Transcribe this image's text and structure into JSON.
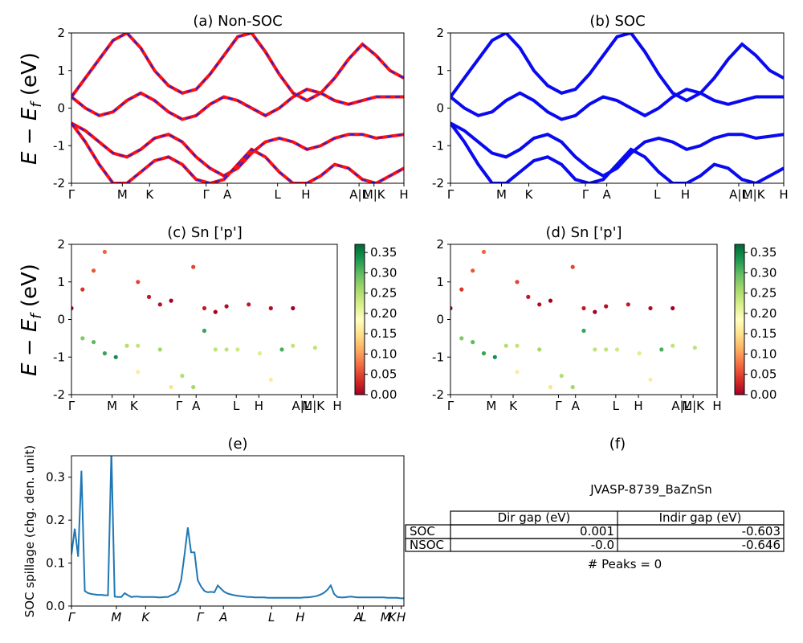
{
  "panels": {
    "a": {
      "title": "(a) Non-SOC"
    },
    "b": {
      "title": "(b) SOC"
    },
    "c": {
      "title": "(c)  Sn ['p']"
    },
    "d": {
      "title": "(d) Sn ['p']"
    },
    "e": {
      "title": "(e)"
    },
    "f": {
      "title": "(f)"
    }
  },
  "band_ylabel": "E − E_f (eV)",
  "kpath_labels": [
    "Γ",
    "M",
    "K",
    "Γ",
    "A",
    "L",
    "H",
    "A",
    "|",
    "L",
    "M",
    "|",
    "K",
    "H"
  ],
  "colorbar_ticks": [
    "0.00",
    "0.05",
    "0.10",
    "0.15",
    "0.20",
    "0.25",
    "0.30",
    "0.35"
  ],
  "colors": {
    "nonsoc_band": "#ff1010",
    "nonsoc_dash": "#2222dd",
    "soc_band": "#0a0af0",
    "spillage_line": "#1f77b4"
  },
  "colormap": "RdYlGn",
  "info": {
    "material": "JVASP-8739_BaZnSn",
    "table": {
      "headers": [
        "",
        "Dir gap (eV)",
        "Indir gap (eV)"
      ],
      "rows": [
        {
          "label": "SOC",
          "dir": "0.001",
          "indir": "-0.603"
        },
        {
          "label": "NSOC",
          "dir": "-0.0",
          "indir": "-0.646"
        }
      ]
    },
    "peaks": "# Peaks = 0"
  },
  "chart_data": [
    {
      "type": "line",
      "title": "(a) Non-SOC",
      "ylabel": "E − E_f (eV)",
      "ylim": [
        -2,
        2
      ],
      "yticks": [
        -2,
        -1,
        0,
        1,
        2
      ],
      "xticks": [
        "Γ",
        "M",
        "K",
        "Γ",
        "A",
        "L",
        "H",
        "A|L",
        "M|K",
        "H"
      ],
      "series": [
        {
          "x": [
            0,
            0.05,
            0.1,
            0.15,
            0.2,
            0.25,
            0.3,
            0.35,
            0.4,
            0.45,
            0.5,
            0.55,
            0.6,
            0.65,
            0.7,
            0.75,
            0.8,
            0.85,
            0.9,
            0.95,
            1.0,
            1.05,
            1.1,
            1.15,
            1.2
          ],
          "y": [
            0.3,
            0.8,
            1.3,
            1.8,
            2.0,
            1.6,
            1.0,
            0.6,
            0.4,
            0.5,
            0.9,
            1.4,
            1.9,
            2.0,
            1.5,
            0.9,
            0.4,
            0.2,
            0.4,
            0.8,
            1.3,
            1.7,
            1.4,
            1.0,
            0.8
          ]
        },
        {
          "x": [
            0,
            0.05,
            0.1,
            0.15,
            0.2,
            0.25,
            0.3,
            0.35,
            0.4,
            0.45,
            0.5,
            0.55,
            0.6,
            0.65,
            0.7,
            0.75,
            0.8,
            0.85,
            0.9,
            0.95,
            1.0,
            1.05,
            1.1,
            1.15,
            1.2
          ],
          "y": [
            0.3,
            0.0,
            -0.2,
            -0.1,
            0.2,
            0.4,
            0.2,
            -0.1,
            -0.3,
            -0.2,
            0.1,
            0.3,
            0.2,
            0.0,
            -0.2,
            0.0,
            0.3,
            0.5,
            0.4,
            0.2,
            0.1,
            0.2,
            0.3,
            0.3,
            0.3
          ]
        },
        {
          "x": [
            0,
            0.05,
            0.1,
            0.15,
            0.2,
            0.25,
            0.3,
            0.35,
            0.4,
            0.45,
            0.5,
            0.55,
            0.6,
            0.65,
            0.7,
            0.75,
            0.8,
            0.85,
            0.9,
            0.95,
            1.0,
            1.05,
            1.1,
            1.15,
            1.2
          ],
          "y": [
            -0.4,
            -0.6,
            -0.9,
            -1.2,
            -1.3,
            -1.1,
            -0.8,
            -0.7,
            -0.9,
            -1.3,
            -1.6,
            -1.8,
            -1.6,
            -1.2,
            -0.9,
            -0.8,
            -0.9,
            -1.1,
            -1.0,
            -0.8,
            -0.7,
            -0.7,
            -0.8,
            -0.75,
            -0.7
          ]
        },
        {
          "x": [
            0,
            0.05,
            0.1,
            0.15,
            0.2,
            0.25,
            0.3,
            0.35,
            0.4,
            0.45,
            0.5,
            0.55,
            0.6,
            0.65,
            0.7,
            0.75,
            0.8,
            0.85,
            0.9,
            0.95,
            1.0,
            1.05,
            1.1,
            1.15,
            1.2
          ],
          "y": [
            -0.4,
            -0.9,
            -1.5,
            -2.0,
            -2.0,
            -1.7,
            -1.4,
            -1.3,
            -1.5,
            -1.9,
            -2.0,
            -1.9,
            -1.5,
            -1.1,
            -1.3,
            -1.7,
            -2.0,
            -2.0,
            -1.8,
            -1.5,
            -1.6,
            -1.9,
            -2.0,
            -1.8,
            -1.6
          ]
        }
      ]
    },
    {
      "type": "line",
      "title": "(b) SOC",
      "ylim": [
        -2,
        2
      ],
      "yticks": [
        -2,
        -1,
        0,
        1,
        2
      ],
      "xticks": [
        "Γ",
        "M",
        "K",
        "Γ",
        "A",
        "L",
        "H",
        "A|L",
        "M|K",
        "H"
      ],
      "series": [
        {
          "x": [
            0,
            0.05,
            0.1,
            0.15,
            0.2,
            0.25,
            0.3,
            0.35,
            0.4,
            0.45,
            0.5,
            0.55,
            0.6,
            0.65,
            0.7,
            0.75,
            0.8,
            0.85,
            0.9,
            0.95,
            1.0,
            1.05,
            1.1,
            1.15,
            1.2
          ],
          "y": [
            0.3,
            0.8,
            1.3,
            1.8,
            2.0,
            1.6,
            1.0,
            0.6,
            0.4,
            0.5,
            0.9,
            1.4,
            1.9,
            2.0,
            1.5,
            0.9,
            0.4,
            0.2,
            0.4,
            0.8,
            1.3,
            1.7,
            1.4,
            1.0,
            0.8
          ]
        },
        {
          "x": [
            0,
            0.05,
            0.1,
            0.15,
            0.2,
            0.25,
            0.3,
            0.35,
            0.4,
            0.45,
            0.5,
            0.55,
            0.6,
            0.65,
            0.7,
            0.75,
            0.8,
            0.85,
            0.9,
            0.95,
            1.0,
            1.05,
            1.1,
            1.15,
            1.2
          ],
          "y": [
            0.3,
            0.0,
            -0.2,
            -0.1,
            0.2,
            0.4,
            0.2,
            -0.1,
            -0.3,
            -0.2,
            0.1,
            0.3,
            0.2,
            0.0,
            -0.2,
            0.0,
            0.3,
            0.5,
            0.4,
            0.2,
            0.1,
            0.2,
            0.3,
            0.3,
            0.3
          ]
        },
        {
          "x": [
            0,
            0.05,
            0.1,
            0.15,
            0.2,
            0.25,
            0.3,
            0.35,
            0.4,
            0.45,
            0.5,
            0.55,
            0.6,
            0.65,
            0.7,
            0.75,
            0.8,
            0.85,
            0.9,
            0.95,
            1.0,
            1.05,
            1.1,
            1.15,
            1.2
          ],
          "y": [
            -0.4,
            -0.6,
            -0.9,
            -1.2,
            -1.3,
            -1.1,
            -0.8,
            -0.7,
            -0.9,
            -1.3,
            -1.6,
            -1.8,
            -1.6,
            -1.2,
            -0.9,
            -0.8,
            -0.9,
            -1.1,
            -1.0,
            -0.8,
            -0.7,
            -0.7,
            -0.8,
            -0.75,
            -0.7
          ]
        },
        {
          "x": [
            0,
            0.05,
            0.1,
            0.15,
            0.2,
            0.25,
            0.3,
            0.35,
            0.4,
            0.45,
            0.5,
            0.55,
            0.6,
            0.65,
            0.7,
            0.75,
            0.8,
            0.85,
            0.9,
            0.95,
            1.0,
            1.05,
            1.1,
            1.15,
            1.2
          ],
          "y": [
            -0.4,
            -0.9,
            -1.5,
            -2.0,
            -2.0,
            -1.7,
            -1.4,
            -1.3,
            -1.5,
            -1.9,
            -2.0,
            -1.9,
            -1.5,
            -1.1,
            -1.3,
            -1.7,
            -2.0,
            -2.0,
            -1.8,
            -1.5,
            -1.6,
            -1.9,
            -2.0,
            -1.8,
            -1.6
          ]
        }
      ]
    },
    {
      "type": "scatter",
      "title": "(c)  Sn ['p']",
      "ylabel": "E − E_f (eV)",
      "ylim": [
        -2,
        2
      ],
      "clim": [
        0,
        0.37
      ],
      "yticks": [
        -2,
        -1,
        0,
        1,
        2
      ],
      "xticks": [
        "Γ",
        "M",
        "K",
        "Γ",
        "A",
        "L",
        "H",
        "A|L",
        "M|K",
        "H"
      ],
      "points": [
        [
          0,
          0.3,
          0.0
        ],
        [
          0.05,
          0.8,
          0.04
        ],
        [
          0.1,
          1.3,
          0.06
        ],
        [
          0.15,
          1.8,
          0.07
        ],
        [
          0.3,
          1.0,
          0.05
        ],
        [
          0.35,
          0.6,
          0.02
        ],
        [
          0.4,
          0.4,
          0.01
        ],
        [
          0.45,
          0.5,
          0.0
        ],
        [
          0.55,
          1.4,
          0.05
        ],
        [
          0.6,
          0.3,
          0.02
        ],
        [
          0.65,
          0.2,
          0.0
        ],
        [
          0.7,
          0.35,
          0.01
        ],
        [
          0.8,
          0.4,
          0.02
        ],
        [
          0.9,
          0.3,
          0.01
        ],
        [
          1.0,
          0.3,
          0.0
        ],
        [
          0.05,
          -0.5,
          0.28
        ],
        [
          0.1,
          -0.6,
          0.3
        ],
        [
          0.15,
          -0.9,
          0.32
        ],
        [
          0.2,
          -1.0,
          0.34
        ],
        [
          0.25,
          -0.7,
          0.25
        ],
        [
          0.3,
          -0.7,
          0.24
        ],
        [
          0.4,
          -0.8,
          0.26
        ],
        [
          0.5,
          -1.5,
          0.25
        ],
        [
          0.55,
          -1.8,
          0.26
        ],
        [
          0.6,
          -0.3,
          0.32
        ],
        [
          0.65,
          -0.8,
          0.24
        ],
        [
          0.7,
          -0.8,
          0.24
        ],
        [
          0.75,
          -0.8,
          0.23
        ],
        [
          0.85,
          -0.9,
          0.22
        ],
        [
          0.95,
          -0.8,
          0.31
        ],
        [
          1.0,
          -0.7,
          0.24
        ],
        [
          1.1,
          -0.75,
          0.24
        ],
        [
          0.3,
          -1.4,
          0.16
        ],
        [
          0.45,
          -1.8,
          0.15
        ],
        [
          0.9,
          -1.6,
          0.16
        ]
      ]
    },
    {
      "type": "scatter",
      "title": "(d) Sn ['p']",
      "ylim": [
        -2,
        2
      ],
      "clim": [
        0,
        0.37
      ],
      "yticks": [
        -2,
        -1,
        0,
        1,
        2
      ],
      "xticks": [
        "Γ",
        "M",
        "K",
        "Γ",
        "A",
        "L",
        "H",
        "A|L",
        "M|K",
        "H"
      ],
      "points": [
        [
          0,
          0.3,
          0.0
        ],
        [
          0.05,
          0.8,
          0.04
        ],
        [
          0.1,
          1.3,
          0.06
        ],
        [
          0.15,
          1.8,
          0.07
        ],
        [
          0.3,
          1.0,
          0.05
        ],
        [
          0.35,
          0.6,
          0.02
        ],
        [
          0.4,
          0.4,
          0.01
        ],
        [
          0.45,
          0.5,
          0.0
        ],
        [
          0.55,
          1.4,
          0.05
        ],
        [
          0.6,
          0.3,
          0.02
        ],
        [
          0.65,
          0.2,
          0.0
        ],
        [
          0.7,
          0.35,
          0.01
        ],
        [
          0.8,
          0.4,
          0.02
        ],
        [
          0.9,
          0.3,
          0.01
        ],
        [
          1.0,
          0.3,
          0.0
        ],
        [
          0.05,
          -0.5,
          0.28
        ],
        [
          0.1,
          -0.6,
          0.3
        ],
        [
          0.15,
          -0.9,
          0.32
        ],
        [
          0.2,
          -1.0,
          0.34
        ],
        [
          0.25,
          -0.7,
          0.25
        ],
        [
          0.3,
          -0.7,
          0.24
        ],
        [
          0.4,
          -0.8,
          0.26
        ],
        [
          0.5,
          -1.5,
          0.25
        ],
        [
          0.55,
          -1.8,
          0.26
        ],
        [
          0.6,
          -0.3,
          0.32
        ],
        [
          0.65,
          -0.8,
          0.24
        ],
        [
          0.7,
          -0.8,
          0.24
        ],
        [
          0.75,
          -0.8,
          0.23
        ],
        [
          0.85,
          -0.9,
          0.22
        ],
        [
          0.95,
          -0.8,
          0.31
        ],
        [
          1.0,
          -0.7,
          0.24
        ],
        [
          1.1,
          -0.75,
          0.24
        ],
        [
          0.3,
          -1.4,
          0.16
        ],
        [
          0.45,
          -1.8,
          0.15
        ],
        [
          0.9,
          -1.6,
          0.16
        ]
      ]
    },
    {
      "type": "line",
      "title": "(e)",
      "ylabel": "SOC spillage (chg. den. unit)",
      "ylim": [
        0,
        0.35
      ],
      "yticks": [
        0.0,
        0.1,
        0.2,
        0.3
      ],
      "xticks": [
        "Γ",
        "M",
        "K",
        "Γ",
        "A",
        "L",
        "H",
        "A",
        "L",
        "M",
        "K",
        "H"
      ],
      "x": [
        0,
        1,
        2,
        3,
        4,
        5,
        6,
        7,
        8,
        9,
        10,
        11,
        12,
        13,
        14,
        15,
        16,
        17,
        18,
        19,
        20,
        21,
        22,
        23,
        24,
        25,
        26,
        27,
        28,
        29,
        30,
        31,
        32,
        33,
        34,
        35,
        36,
        37,
        38,
        39,
        40,
        41,
        42,
        43,
        44,
        45,
        46,
        47,
        48,
        49,
        50,
        51,
        52,
        53,
        54,
        55,
        56,
        57,
        58,
        59,
        60,
        61,
        62,
        63,
        64,
        65,
        66,
        67,
        68,
        69,
        70,
        71,
        72,
        73,
        74,
        75,
        76,
        77,
        78,
        79,
        80,
        81,
        82,
        83,
        84,
        85,
        86,
        87,
        88,
        89,
        90,
        91,
        92,
        93,
        94,
        95,
        96,
        97,
        98,
        99,
        100
      ],
      "y": [
        0.12,
        0.18,
        0.115,
        0.315,
        0.035,
        0.03,
        0.028,
        0.027,
        0.026,
        0.026,
        0.025,
        0.025,
        0.36,
        0.022,
        0.021,
        0.021,
        0.03,
        0.025,
        0.021,
        0.022,
        0.022,
        0.021,
        0.021,
        0.021,
        0.021,
        0.021,
        0.02,
        0.02,
        0.021,
        0.021,
        0.025,
        0.028,
        0.035,
        0.06,
        0.12,
        0.183,
        0.125,
        0.125,
        0.06,
        0.045,
        0.035,
        0.032,
        0.033,
        0.032,
        0.048,
        0.04,
        0.033,
        0.029,
        0.027,
        0.025,
        0.024,
        0.023,
        0.022,
        0.021,
        0.021,
        0.02,
        0.02,
        0.02,
        0.02,
        0.019,
        0.019,
        0.019,
        0.019,
        0.019,
        0.019,
        0.019,
        0.019,
        0.019,
        0.019,
        0.019,
        0.02,
        0.02,
        0.021,
        0.022,
        0.024,
        0.027,
        0.031,
        0.038,
        0.048,
        0.028,
        0.021,
        0.02,
        0.02,
        0.021,
        0.022,
        0.021,
        0.02,
        0.02,
        0.02,
        0.02,
        0.02,
        0.02,
        0.02,
        0.02,
        0.02,
        0.019,
        0.019,
        0.019,
        0.019,
        0.018,
        0.018
      ]
    }
  ]
}
